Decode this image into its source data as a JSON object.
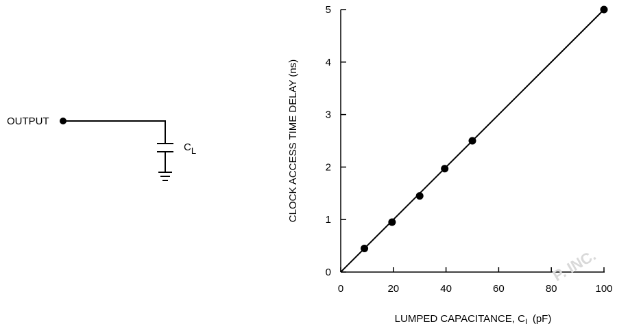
{
  "circuit": {
    "output_label": "OUTPUT",
    "cap_label": "C",
    "cap_subscript": "L"
  },
  "watermark": "P. INC.",
  "chart_data": {
    "type": "scatter",
    "title": "",
    "xlabel_main": "LUMPED CAPACITANCE, C",
    "xlabel_sub": "L",
    "xlabel_tail": " (pF)",
    "ylabel": "CLOCK ACCESS TIME DELAY (ns)",
    "xlim": [
      0,
      100
    ],
    "ylim": [
      0,
      5
    ],
    "x_ticks": [
      "0",
      "20",
      "40",
      "60",
      "80",
      "100"
    ],
    "y_ticks": [
      "0",
      "1",
      "2",
      "3",
      "4",
      "5"
    ],
    "grid": false,
    "series": [
      {
        "x": [
          9,
          19.5,
          30,
          39.5,
          50,
          100
        ],
        "y": [
          0.45,
          0.95,
          1.45,
          1.97,
          2.5,
          5.0
        ]
      }
    ],
    "fit_line": {
      "x": [
        0,
        100
      ],
      "y": [
        0,
        5
      ]
    }
  }
}
